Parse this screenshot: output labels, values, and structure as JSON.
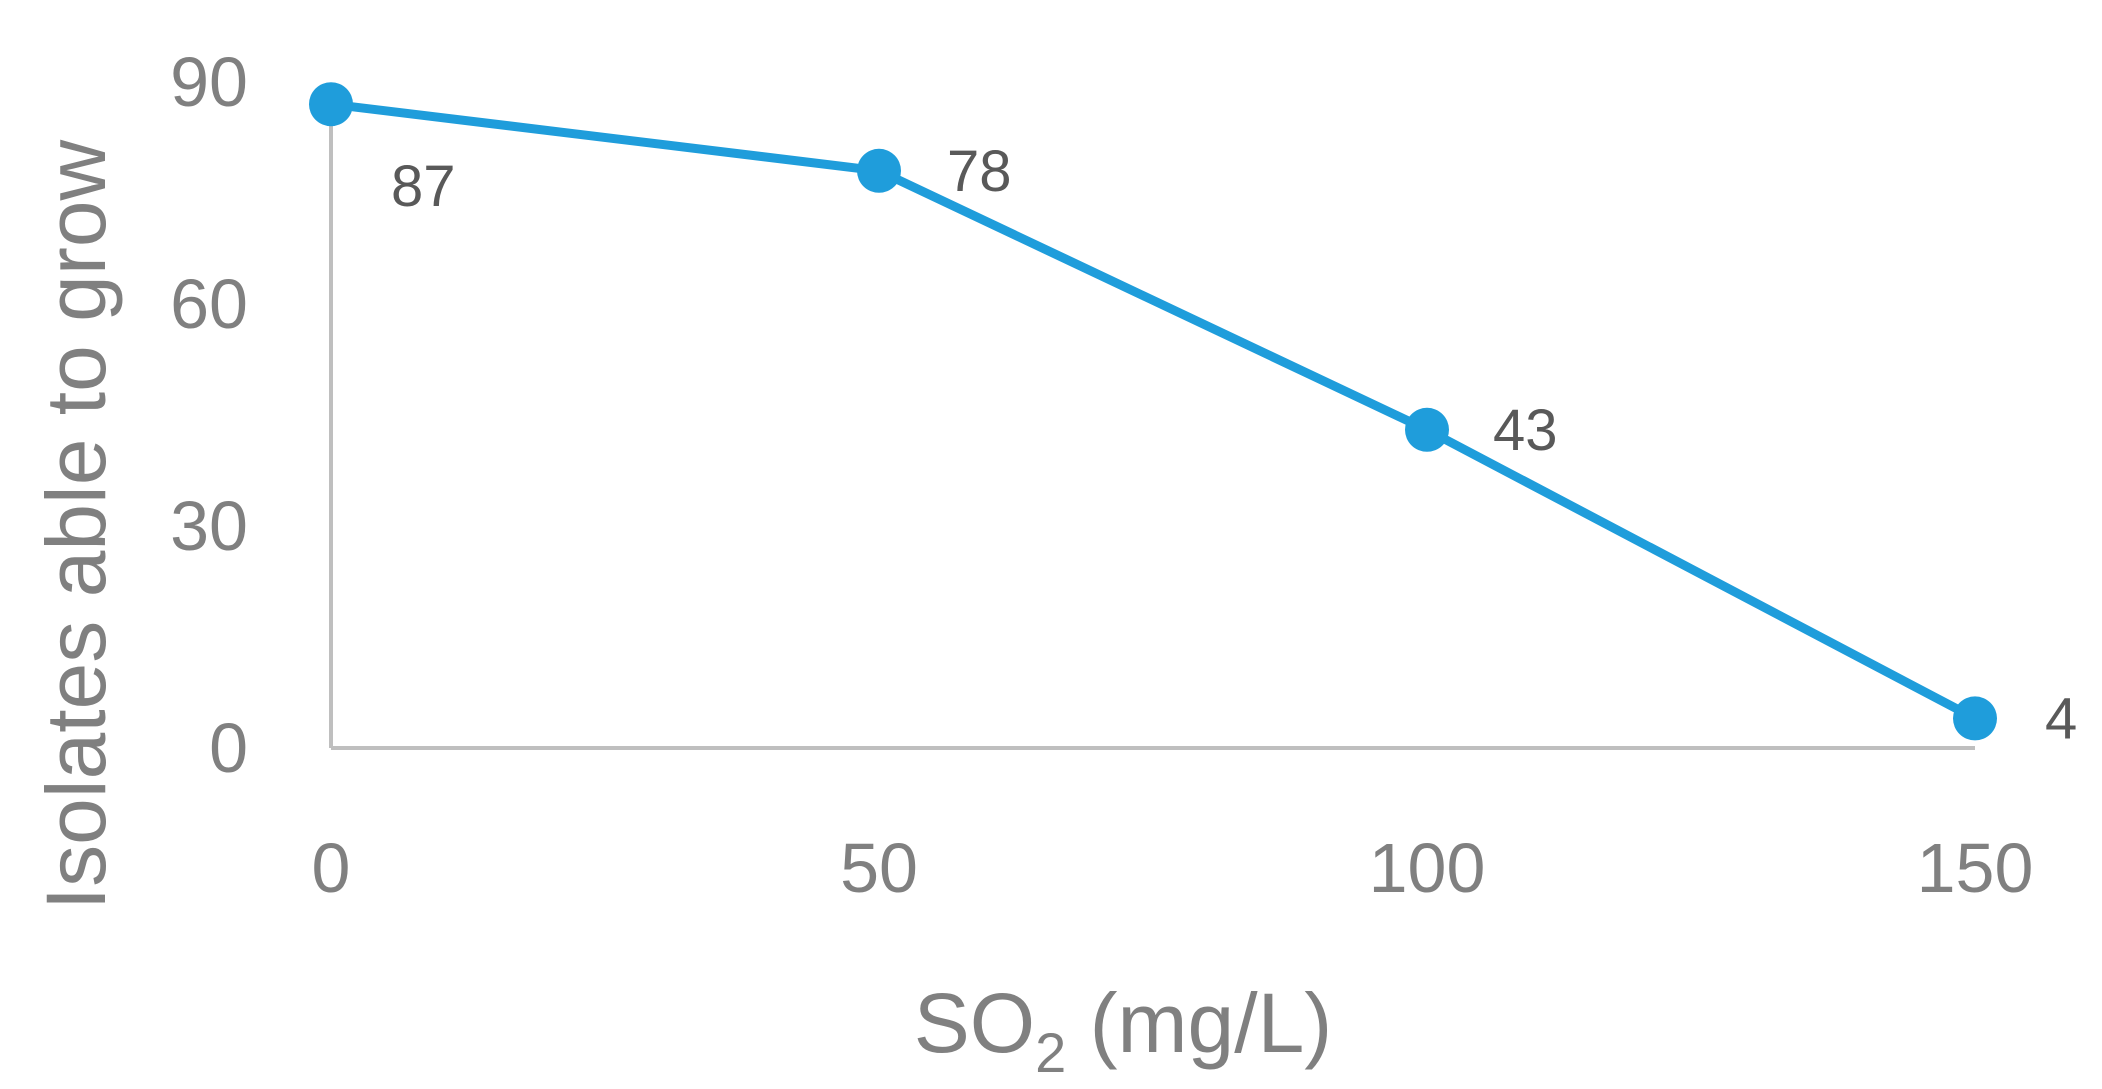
{
  "chart_data": {
    "type": "line",
    "title": "",
    "xlabel": {
      "main": "SO",
      "subscript": "2",
      "suffix": " (mg/L)"
    },
    "ylabel": "Isolates able to grow",
    "x": [
      0,
      50,
      100,
      150
    ],
    "x_tick_labels": [
      "0",
      "50",
      "100",
      "150"
    ],
    "y_tick_labels": [
      "0",
      "30",
      "60",
      "90"
    ],
    "ylim": [
      0,
      90
    ],
    "xlim": [
      0,
      150
    ],
    "grid": false,
    "legend": "none",
    "series": [
      {
        "values": [
          87,
          78,
          43,
          4
        ],
        "labels": [
          "87",
          "78",
          "43",
          "4"
        ],
        "color": "#1f9ddb"
      }
    ],
    "axis_color": "#bfbfbf",
    "text_color": "#808080",
    "label_color": "#595959"
  }
}
